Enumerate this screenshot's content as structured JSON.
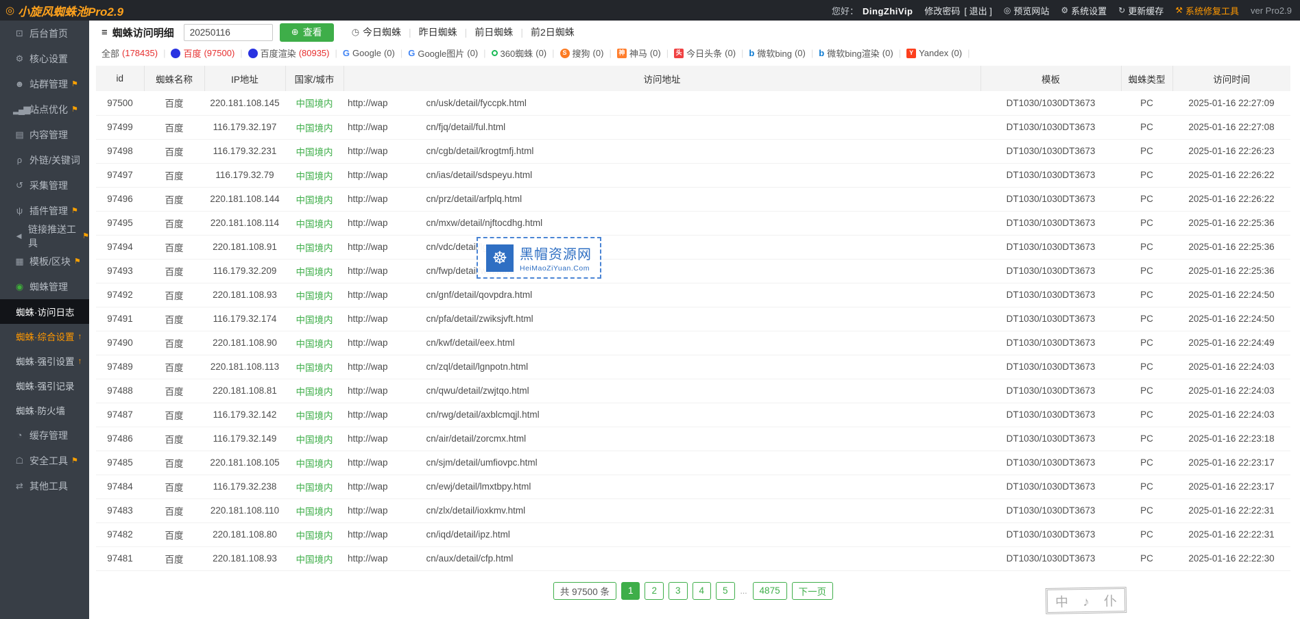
{
  "navbar": {
    "brand": {
      "icon": "cyclone-icon",
      "text": "小旋风蜘蛛池Pro2.9"
    },
    "greeting_label": "您好：",
    "username": "DingZhiVip",
    "change_password": "修改密码",
    "logout": "[ 退出 ]",
    "links": [
      {
        "name": "preview-site",
        "icon": "preview-icon",
        "label": "预览网站"
      },
      {
        "name": "system-settings",
        "icon": "gear-icon",
        "label": "系统设置"
      },
      {
        "name": "refresh-cache",
        "icon": "refresh-icon",
        "label": "更新缓存"
      },
      {
        "name": "system-repair-tool",
        "icon": "wrench-icon",
        "label": "系统修复工具",
        "accent": true
      }
    ],
    "version": "ver Pro2.9",
    "accent_color": "#ff9800",
    "brand_color": "#ffa21c"
  },
  "sidebar": {
    "items": [
      {
        "type": "item",
        "name": "dashboard",
        "icon": "monitor-icon",
        "label": "后台首页"
      },
      {
        "type": "item",
        "name": "core-settings",
        "icon": "gear-icon",
        "label": "核心设置"
      },
      {
        "type": "item",
        "name": "site-group",
        "icon": "user-icon",
        "label": "站群管理",
        "pinned": true
      },
      {
        "type": "item",
        "name": "site-optimize",
        "icon": "chart-icon",
        "label": "站点优化",
        "pinned": true
      },
      {
        "type": "item",
        "name": "content-manage",
        "icon": "document-icon",
        "label": "内容管理"
      },
      {
        "type": "item",
        "name": "links-keywords",
        "icon": "search-icon",
        "label": "外链/关键词"
      },
      {
        "type": "item",
        "name": "collect-manage",
        "icon": "collect-icon",
        "label": "采集管理"
      },
      {
        "type": "item",
        "name": "plugin-manage",
        "icon": "plugin-icon",
        "label": "插件管理",
        "pinned": true
      },
      {
        "type": "item",
        "name": "link-push-tool",
        "icon": "send-icon",
        "label": "链接推送工具",
        "pinned": true
      },
      {
        "type": "item",
        "name": "templates-blocks",
        "icon": "blocks-icon",
        "label": "模板/区块",
        "pinned": true
      },
      {
        "type": "item",
        "name": "spider-manage",
        "icon": "spider-icon",
        "label": "蜘蛛管理",
        "icon_color": "#3fae3a"
      },
      {
        "type": "sub",
        "name": "spider-access-log",
        "label": "蜘蛛·访问日志",
        "active": true
      },
      {
        "type": "sub",
        "name": "spider-general-settings",
        "label": "蜘蛛·综合设置",
        "accent": true,
        "arrow": true
      },
      {
        "type": "sub",
        "name": "spider-force-settings",
        "label": "蜘蛛·强引设置",
        "arrow": true
      },
      {
        "type": "sub",
        "name": "spider-force-records",
        "label": "蜘蛛·强引记录"
      },
      {
        "type": "sub",
        "name": "spider-firewall",
        "label": "蜘蛛·防火墙"
      },
      {
        "type": "item",
        "name": "cache-manage",
        "icon": "cache-icon",
        "label": "缓存管理"
      },
      {
        "type": "item",
        "name": "security-tools",
        "icon": "shield-icon",
        "label": "安全工具",
        "pinned": true
      },
      {
        "type": "item",
        "name": "other-tools",
        "icon": "tools-icon",
        "label": "其他工具"
      }
    ]
  },
  "toolbar": {
    "title": {
      "icon": "list-icon",
      "text": "蜘蛛访问明细"
    },
    "date_input": {
      "value": "20250116",
      "icon": "calendar-icon"
    },
    "view_button": {
      "icon": "zoom-icon",
      "label": "查看",
      "color": "#3eae49"
    },
    "quick_links": [
      {
        "name": "today-spiders",
        "icon": "timer-icon",
        "label": "今日蜘蛛"
      },
      {
        "name": "yesterday-spiders",
        "label": "昨日蜘蛛"
      },
      {
        "name": "day-before-spiders",
        "label": "前日蜘蛛"
      },
      {
        "name": "two-days-ago-spiders",
        "label": "前2日蜘蛛"
      }
    ]
  },
  "filters": [
    {
      "name": "all",
      "label": "全部",
      "count": "178435",
      "count_red": true
    },
    {
      "name": "baidu",
      "label": "百度",
      "count": "97500",
      "active": true,
      "icon": {
        "shape": "circle",
        "bg": "#2932e1",
        "fg": "#ffffff",
        "ch": ""
      }
    },
    {
      "name": "baidu-render",
      "label": "百度渲染",
      "count": "80935",
      "count_red": true,
      "icon": {
        "shape": "circle",
        "bg": "#2932e1",
        "fg": "#ffffff",
        "ch": ""
      }
    },
    {
      "name": "google",
      "label": "Google",
      "count": "0",
      "icon": {
        "shape": "letter",
        "fg": "#4285F4",
        "ch": "G"
      }
    },
    {
      "name": "google-images",
      "label": "Google图片",
      "count": "0",
      "icon": {
        "shape": "letter",
        "fg": "#4285F4",
        "ch": "G"
      }
    },
    {
      "name": "360-spider",
      "label": "360蜘蛛",
      "count": "0",
      "icon": {
        "shape": "ring",
        "border": "#19b955"
      }
    },
    {
      "name": "sogou",
      "label": "搜狗",
      "count": "0",
      "icon": {
        "shape": "circle",
        "bg": "#fc7b23",
        "fg": "#ffffff",
        "ch": "S"
      }
    },
    {
      "name": "shenma",
      "label": "神马",
      "count": "0",
      "icon": {
        "shape": "square",
        "bg": "#ff7e2d",
        "fg": "#ffffff",
        "ch": "神"
      }
    },
    {
      "name": "toutiao",
      "label": "今日头条",
      "count": "0",
      "icon": {
        "shape": "square",
        "bg": "#f04142",
        "fg": "#ffffff",
        "ch": "头"
      }
    },
    {
      "name": "bing",
      "label": "微软bing",
      "count": "0",
      "icon": {
        "shape": "letter",
        "fg": "#0b79d0",
        "ch": "b"
      }
    },
    {
      "name": "bing-render",
      "label": "微软bing渲染",
      "count": "0",
      "icon": {
        "shape": "letter",
        "fg": "#0b79d0",
        "ch": "b"
      }
    },
    {
      "name": "yandex",
      "label": "Yandex",
      "count": "0",
      "icon": {
        "shape": "square",
        "bg": "#fc3f1d",
        "fg": "#ffffff",
        "ch": "Y"
      }
    }
  ],
  "table": {
    "columns": [
      "id",
      "蜘蛛名称",
      "IP地址",
      "国家/城市",
      "访问地址",
      "模板",
      "蜘蛛类型",
      "访问时间"
    ],
    "region_color": "#3eae49",
    "rows": [
      {
        "id": "97500",
        "spider": "百度",
        "ip": "220.181.108.145",
        "region": "中国境内",
        "url_prefix": "http://wap",
        "url_suffix": "cn/usk/detail/fyccpk.html",
        "template": "DT1030/1030DT3673",
        "device": "PC",
        "time": "2025-01-16 22:27:09"
      },
      {
        "id": "97499",
        "spider": "百度",
        "ip": "116.179.32.197",
        "region": "中国境内",
        "url_prefix": "http://wap",
        "url_suffix": "cn/fjq/detail/ful.html",
        "template": "DT1030/1030DT3673",
        "device": "PC",
        "time": "2025-01-16 22:27:08"
      },
      {
        "id": "97498",
        "spider": "百度",
        "ip": "116.179.32.231",
        "region": "中国境内",
        "url_prefix": "http://wap",
        "url_suffix": "cn/cgb/detail/krogtmfj.html",
        "template": "DT1030/1030DT3673",
        "device": "PC",
        "time": "2025-01-16 22:26:23"
      },
      {
        "id": "97497",
        "spider": "百度",
        "ip": "116.179.32.79",
        "region": "中国境内",
        "url_prefix": "http://wap",
        "url_suffix": "cn/ias/detail/sdspeyu.html",
        "template": "DT1030/1030DT3673",
        "device": "PC",
        "time": "2025-01-16 22:26:22"
      },
      {
        "id": "97496",
        "spider": "百度",
        "ip": "220.181.108.144",
        "region": "中国境内",
        "url_prefix": "http://wap",
        "url_suffix": "cn/prz/detail/arfplq.html",
        "template": "DT1030/1030DT3673",
        "device": "PC",
        "time": "2025-01-16 22:26:22"
      },
      {
        "id": "97495",
        "spider": "百度",
        "ip": "220.181.108.114",
        "region": "中国境内",
        "url_prefix": "http://wap",
        "url_suffix": "cn/mxw/detail/njftocdhg.html",
        "template": "DT1030/1030DT3673",
        "device": "PC",
        "time": "2025-01-16 22:25:36"
      },
      {
        "id": "97494",
        "spider": "百度",
        "ip": "220.181.108.91",
        "region": "中国境内",
        "url_prefix": "http://wap",
        "url_suffix": "cn/vdc/detail/lgs/",
        "template": "DT1030/1030DT3673",
        "device": "PC",
        "time": "2025-01-16 22:25:36"
      },
      {
        "id": "97493",
        "spider": "百度",
        "ip": "116.179.32.209",
        "region": "中国境内",
        "url_prefix": "http://wap",
        "url_suffix": "cn/fwp/detail/wih.html",
        "template": "DT1030/1030DT3673",
        "device": "PC",
        "time": "2025-01-16 22:25:36"
      },
      {
        "id": "97492",
        "spider": "百度",
        "ip": "220.181.108.93",
        "region": "中国境内",
        "url_prefix": "http://wap",
        "url_suffix": "cn/gnf/detail/qovpdra.html",
        "template": "DT1030/1030DT3673",
        "device": "PC",
        "time": "2025-01-16 22:24:50"
      },
      {
        "id": "97491",
        "spider": "百度",
        "ip": "116.179.32.174",
        "region": "中国境内",
        "url_prefix": "http://wap",
        "url_suffix": "cn/pfa/detail/zwiksjvft.html",
        "template": "DT1030/1030DT3673",
        "device": "PC",
        "time": "2025-01-16 22:24:50"
      },
      {
        "id": "97490",
        "spider": "百度",
        "ip": "220.181.108.90",
        "region": "中国境内",
        "url_prefix": "http://wap",
        "url_suffix": "cn/kwf/detail/eex.html",
        "template": "DT1030/1030DT3673",
        "device": "PC",
        "time": "2025-01-16 22:24:49"
      },
      {
        "id": "97489",
        "spider": "百度",
        "ip": "220.181.108.113",
        "region": "中国境内",
        "url_prefix": "http://wap",
        "url_suffix": "cn/zql/detail/lgnpotn.html",
        "template": "DT1030/1030DT3673",
        "device": "PC",
        "time": "2025-01-16 22:24:03"
      },
      {
        "id": "97488",
        "spider": "百度",
        "ip": "220.181.108.81",
        "region": "中国境内",
        "url_prefix": "http://wap",
        "url_suffix": "cn/qwu/detail/zwjtqo.html",
        "template": "DT1030/1030DT3673",
        "device": "PC",
        "time": "2025-01-16 22:24:03"
      },
      {
        "id": "97487",
        "spider": "百度",
        "ip": "116.179.32.142",
        "region": "中国境内",
        "url_prefix": "http://wap",
        "url_suffix": "cn/rwg/detail/axblcmqjl.html",
        "template": "DT1030/1030DT3673",
        "device": "PC",
        "time": "2025-01-16 22:24:03"
      },
      {
        "id": "97486",
        "spider": "百度",
        "ip": "116.179.32.149",
        "region": "中国境内",
        "url_prefix": "http://wap",
        "url_suffix": "cn/air/detail/zorcmx.html",
        "template": "DT1030/1030DT3673",
        "device": "PC",
        "time": "2025-01-16 22:23:18"
      },
      {
        "id": "97485",
        "spider": "百度",
        "ip": "220.181.108.105",
        "region": "中国境内",
        "url_prefix": "http://wap",
        "url_suffix": "cn/sjm/detail/umfiovpc.html",
        "template": "DT1030/1030DT3673",
        "device": "PC",
        "time": "2025-01-16 22:23:17"
      },
      {
        "id": "97484",
        "spider": "百度",
        "ip": "116.179.32.238",
        "region": "中国境内",
        "url_prefix": "http://wap",
        "url_suffix": "cn/ewj/detail/lmxtbpy.html",
        "template": "DT1030/1030DT3673",
        "device": "PC",
        "time": "2025-01-16 22:23:17"
      },
      {
        "id": "97483",
        "spider": "百度",
        "ip": "220.181.108.110",
        "region": "中国境内",
        "url_prefix": "http://wap",
        "url_suffix": "cn/zlx/detail/ioxkmv.html",
        "template": "DT1030/1030DT3673",
        "device": "PC",
        "time": "2025-01-16 22:22:31"
      },
      {
        "id": "97482",
        "spider": "百度",
        "ip": "220.181.108.80",
        "region": "中国境内",
        "url_prefix": "http://wap",
        "url_suffix": "cn/iqd/detail/ipz.html",
        "template": "DT1030/1030DT3673",
        "device": "PC",
        "time": "2025-01-16 22:22:31"
      },
      {
        "id": "97481",
        "spider": "百度",
        "ip": "220.181.108.93",
        "region": "中国境内",
        "url_prefix": "http://wap",
        "url_suffix": "cn/aux/detail/cfp.html",
        "template": "DT1030/1030DT3673",
        "device": "PC",
        "time": "2025-01-16 22:22:30"
      }
    ]
  },
  "pagination": {
    "total": "共 97500 条",
    "pages": [
      "1",
      "2",
      "3",
      "4",
      "5"
    ],
    "active": "1",
    "ellipsis": "...",
    "last": "4875",
    "next": "下一页",
    "accent_color": "#3eae49"
  },
  "watermark": {
    "logo_icon": "spider-logo-icon",
    "title": "黑帽资源网",
    "subtitle": "HeiMaoZiYuan.Com",
    "color": "#2f6fc3"
  },
  "seal": {
    "text": "中 ♪ 仆"
  }
}
